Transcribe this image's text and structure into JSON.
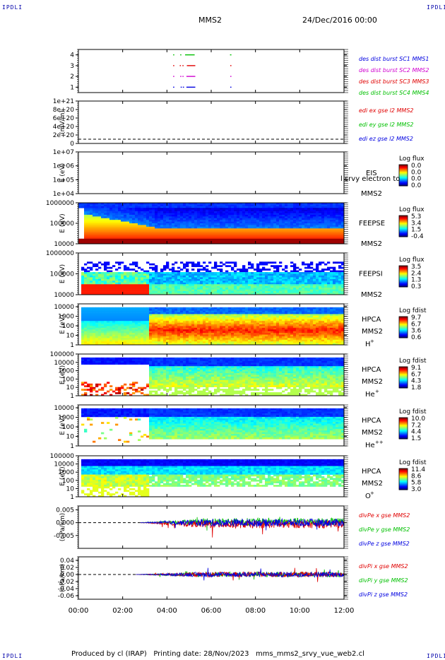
{
  "header": {
    "corner_tl": "IPDLI",
    "corner_tr": "IPDLI",
    "corner_bl": "IPDLI",
    "corner_br": "IPDLI",
    "spacecraft": "MMS2",
    "date": "24/Dec/2016 00:00"
  },
  "footer": {
    "text": "Produced by cl (IRAP)   Printing date: 28/Nov/2023   mms_mms2_srvy_vue_web2.cl"
  },
  "colors": {
    "red": "#e00000",
    "green": "#00c000",
    "blue": "#0000e0",
    "magenta": "#d000d0"
  },
  "chart_data": [
    {
      "id": "burst",
      "type": "scatter",
      "ylabel": "",
      "yticks": [
        "4",
        "3",
        "2",
        "1"
      ],
      "ylim": [
        0.5,
        4.5
      ],
      "legend": [
        {
          "text": "des dist burst SC1 MMS1",
          "color": "#0000e0"
        },
        {
          "text": "des dist burst SC2 MMS2",
          "color": "#d000d0"
        },
        {
          "text": "des dist burst SC3 MMS3",
          "color": "#e00000"
        },
        {
          "text": "des dist burst SC4 MMS4",
          "color": "#00c000"
        }
      ],
      "series": [
        {
          "name": "des dist burst SC4 MMS4",
          "y": 4,
          "color": "#00c000",
          "segments": [
            [
              4.28,
              4.3
            ],
            [
              4.6,
              4.62
            ],
            [
              4.82,
              5.22
            ],
            [
              6.85,
              6.88
            ]
          ]
        },
        {
          "name": "des dist burst SC3 MMS3",
          "y": 3,
          "color": "#e00000",
          "segments": [
            [
              4.28,
              4.3
            ],
            [
              4.58,
              4.6
            ],
            [
              4.7,
              4.72
            ],
            [
              4.9,
              5.25
            ],
            [
              6.86,
              6.88
            ]
          ]
        },
        {
          "name": "des dist burst SC2 MMS2",
          "y": 2,
          "color": "#d000d0",
          "segments": [
            [
              4.28,
              4.3
            ],
            [
              4.6,
              4.62
            ],
            [
              4.7,
              4.72
            ],
            [
              4.88,
              5.25
            ],
            [
              6.86,
              6.88
            ]
          ]
        },
        {
          "name": "des dist burst SC1 MMS1",
          "y": 1,
          "color": "#0000e0",
          "segments": [
            [
              4.28,
              4.3
            ],
            [
              4.62,
              4.64
            ],
            [
              4.72,
              4.74
            ],
            [
              4.88,
              5.25
            ],
            [
              6.86,
              6.88
            ]
          ]
        }
      ]
    },
    {
      "id": "edi",
      "type": "line",
      "ylabel": "(mV/m)",
      "yticks": [
        "1e+21",
        "8e+20",
        "6e+20",
        "4e+20",
        "2e+20",
        "0"
      ],
      "ylim": [
        0,
        1e+21
      ],
      "legend": [
        {
          "text": "edi ex gse l2 MMS2",
          "color": "#e00000"
        },
        {
          "text": "edi ey gse l2 MMS2",
          "color": "#00c000"
        },
        {
          "text": "edi ez gse l2 MMS2",
          "color": "#0000e0"
        }
      ]
    },
    {
      "id": "eis",
      "type": "heatmap",
      "ylabel": "E (eV)",
      "yticks": [
        "1e+07",
        "1e+06",
        "1e+05",
        "1e+04"
      ],
      "ylim": [
        10000,
        10000000
      ],
      "instrument": "EIS",
      "instrument_extra": "l srvy electron to",
      "spacecraft": "MMS2",
      "cbar_title": "Log flux",
      "cbar_ticks": [
        "0.0",
        "0.0",
        "0.0",
        "0.0"
      ]
    },
    {
      "id": "feepse",
      "type": "heatmap",
      "ylabel": "E (eV)",
      "yticks": [
        "1000000",
        "100000",
        "10000"
      ],
      "ylim": [
        10000,
        1000000
      ],
      "instrument": "FEEPSE",
      "spacecraft": "MMS2",
      "cbar_title": "Log flux",
      "cbar_ticks": [
        "5.3",
        "3.4",
        "1.5",
        "-0.4"
      ]
    },
    {
      "id": "feepsi",
      "type": "heatmap",
      "ylabel": "E (eV)",
      "yticks": [
        "1000000",
        "100000",
        "10000"
      ],
      "ylim": [
        10000,
        1000000
      ],
      "instrument": "FEEPSI",
      "spacecraft": "MMS2",
      "cbar_title": "Log flux",
      "cbar_ticks": [
        "3.5",
        "2.4",
        "1.3",
        "0.3"
      ]
    },
    {
      "id": "hpca-h",
      "type": "heatmap",
      "ylabel": "E (eV)",
      "yticks": [
        "10000",
        "1000",
        "100",
        "10",
        "1"
      ],
      "ylim": [
        1,
        30000
      ],
      "instrument": "HPCA",
      "spacecraft": "MMS2",
      "species": "H",
      "species_sup": "+",
      "cbar_title": "Log fdist",
      "cbar_ticks": [
        "9.7",
        "6.7",
        "3.6",
        "0.6"
      ]
    },
    {
      "id": "hpca-he",
      "type": "heatmap",
      "ylabel": "E (eV)",
      "yticks": [
        "100000",
        "10000",
        "1000",
        "100",
        "10",
        "1"
      ],
      "ylim": [
        1,
        100000
      ],
      "instrument": "HPCA",
      "spacecraft": "MMS2",
      "species": "He",
      "species_sup": "+",
      "cbar_title": "Log fdist",
      "cbar_ticks": [
        "9.1",
        "6.7",
        "4.3",
        "1.8"
      ]
    },
    {
      "id": "hpca-hepp",
      "type": "heatmap",
      "ylabel": "E (eV)",
      "yticks": [
        "10000",
        "1000",
        "100",
        "10",
        "1"
      ],
      "ylim": [
        1,
        30000
      ],
      "instrument": "HPCA",
      "spacecraft": "MMS2",
      "species": "He",
      "species_sup": "++",
      "cbar_title": "Log fdist",
      "cbar_ticks": [
        "10.0",
        "7.2",
        "4.4",
        "1.5"
      ]
    },
    {
      "id": "hpca-o",
      "type": "heatmap",
      "ylabel": "E (eV)",
      "yticks": [
        "100000",
        "10000",
        "1000",
        "100",
        "10",
        "1"
      ],
      "ylim": [
        1,
        100000
      ],
      "instrument": "HPCA",
      "spacecraft": "MMS2",
      "species": "O",
      "species_sup": "+",
      "cbar_title": "Log fdist",
      "cbar_ticks": [
        "11.4",
        "8.6",
        "5.8",
        "3.0"
      ]
    },
    {
      "id": "divpe",
      "type": "line",
      "ylabel": "(nPa/km)",
      "yticks": [
        "0.005",
        "0.000",
        "-0.005"
      ],
      "ytick_values": [
        0.005,
        0.0,
        -0.005
      ],
      "ylim": [
        -0.01,
        0.0065
      ],
      "onset": 2.8,
      "legend": [
        {
          "text": "divPe x gse MMS2",
          "color": "#e00000"
        },
        {
          "text": "divPe y gse MMS2",
          "color": "#00c000"
        },
        {
          "text": "divPe z gse MMS2",
          "color": "#0000e0"
        }
      ]
    },
    {
      "id": "divpi",
      "type": "line",
      "ylabel": "(nPa/km)",
      "yticks": [
        "0.04",
        "0.02",
        "0.00",
        "-0.02",
        "-0.04",
        "-0.06"
      ],
      "ytick_values": [
        0.04,
        0.02,
        0.0,
        -0.02,
        -0.04,
        -0.06
      ],
      "ylim": [
        -0.07,
        0.05
      ],
      "onset": 2.6,
      "legend": [
        {
          "text": "divPi x gse MMS2",
          "color": "#e00000"
        },
        {
          "text": "divPi y gse MMS2",
          "color": "#00c000"
        },
        {
          "text": "divPi z gse MMS2",
          "color": "#0000e0"
        }
      ]
    }
  ],
  "time_axis": {
    "xlim": [
      0,
      12
    ],
    "ticks": [
      "00:00",
      "02:00",
      "04:00",
      "06:00",
      "08:00",
      "10:00",
      "12:00"
    ],
    "tick_values": [
      0,
      2,
      4,
      6,
      8,
      10,
      12
    ]
  }
}
